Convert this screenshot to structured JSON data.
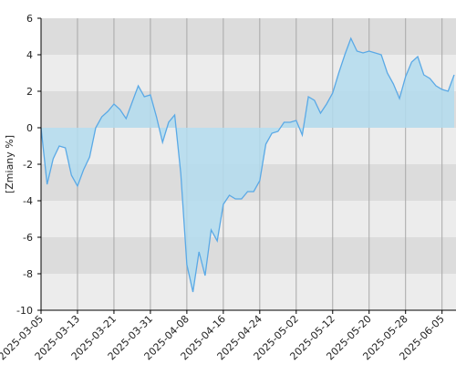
{
  "chart_data": {
    "type": "area",
    "ylabel": "[Zmiany %]",
    "categories": [
      "2025-03-05",
      null,
      null,
      null,
      null,
      null,
      "2025-03-13",
      null,
      null,
      null,
      null,
      null,
      "2025-03-21",
      null,
      null,
      null,
      null,
      null,
      "2025-03-31",
      null,
      null,
      null,
      null,
      null,
      "2025-04-08",
      null,
      null,
      null,
      null,
      null,
      "2025-04-16",
      null,
      null,
      null,
      null,
      null,
      "2025-04-24",
      null,
      null,
      null,
      null,
      null,
      "2025-05-02",
      null,
      null,
      null,
      null,
      null,
      "2025-05-12",
      null,
      null,
      null,
      null,
      null,
      "2025-05-20",
      null,
      null,
      null,
      null,
      null,
      "2025-05-28",
      null,
      null,
      null,
      null,
      null,
      "2025-06-05",
      null,
      null
    ],
    "values": [
      0,
      -3.1,
      -1.7,
      -1.0,
      -1.1,
      -2.6,
      -3.2,
      -2.3,
      -1.6,
      0.0,
      0.6,
      0.9,
      1.3,
      1.0,
      0.5,
      1.4,
      2.3,
      1.7,
      1.8,
      0.6,
      -0.8,
      0.3,
      0.7,
      -2.5,
      -7.5,
      -9.0,
      -6.8,
      -8.1,
      -5.6,
      -6.2,
      -4.2,
      -3.7,
      -3.9,
      -3.9,
      -3.5,
      -3.5,
      -2.9,
      -0.9,
      -0.3,
      -0.2,
      0.3,
      0.3,
      0.4,
      -0.4,
      1.7,
      1.5,
      0.8,
      1.3,
      1.9,
      3.0,
      4.0,
      4.9,
      4.2,
      4.1,
      4.2,
      4.1,
      4.0,
      3.0,
      2.4,
      1.6,
      2.8,
      3.6,
      3.9,
      2.9,
      2.7,
      2.3,
      2.1,
      2.0,
      2.9
    ],
    "color": "#5aa9e6",
    "fill_color": "#b3dcef",
    "ylim": [
      -10,
      6
    ],
    "yticks": [
      -10,
      -8,
      -6,
      -4,
      -2,
      0,
      2,
      4,
      6
    ],
    "grid": true
  }
}
